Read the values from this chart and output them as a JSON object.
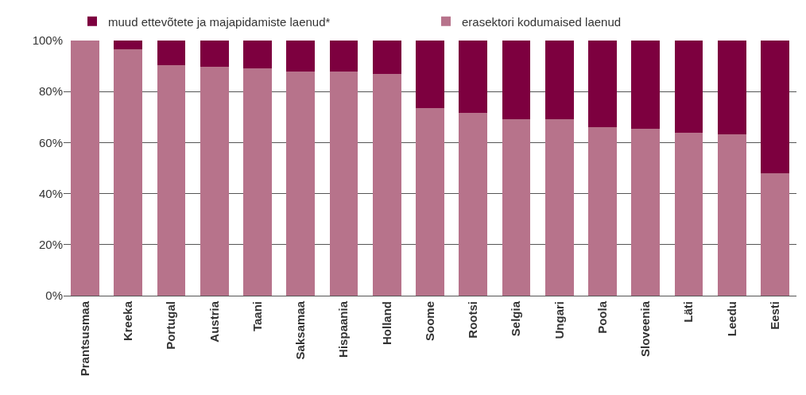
{
  "chart_data": {
    "type": "bar",
    "stacked": true,
    "categories": [
      "Prantsusmaa",
      "Kreeka",
      "Portugal",
      "Austria",
      "Taani",
      "Saksamaa",
      "Hispaania",
      "Holland",
      "Soome",
      "Rootsi",
      "Selgia",
      "Ungari",
      "Poola",
      "Sloveenia",
      "Läti",
      "Leedu",
      "Eesti"
    ],
    "series": [
      {
        "name": "erasektori kodumaised laenud",
        "color": "#b7738b",
        "values": [
          100,
          96.6,
          90.3,
          89.7,
          89.1,
          87.8,
          87.8,
          86.9,
          73.4,
          71.5,
          69.3,
          69.3,
          66.1,
          65.5,
          63.9,
          63.3,
          47.9
        ]
      },
      {
        "name": "muud ettevõtete ja majapidamiste laenud*",
        "color": "#7d003f",
        "values": [
          0,
          3.4,
          9.7,
          10.3,
          10.9,
          12.2,
          12.2,
          13.1,
          26.6,
          28.5,
          30.7,
          30.7,
          33.9,
          34.5,
          36.1,
          36.7,
          52.1
        ]
      }
    ],
    "ylim": [
      0,
      100
    ],
    "yticks": [
      {
        "value": 0,
        "label": "0%"
      },
      {
        "value": 20,
        "label": "20%"
      },
      {
        "value": 40,
        "label": "40%"
      },
      {
        "value": 60,
        "label": "60%"
      },
      {
        "value": 80,
        "label": "80%"
      },
      {
        "value": 100,
        "label": "100%"
      }
    ],
    "grid": "y",
    "legend": "top"
  }
}
